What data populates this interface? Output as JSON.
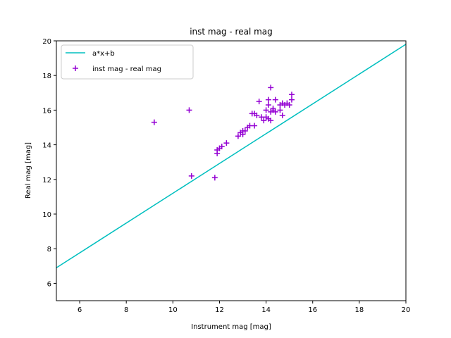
{
  "chart_data": {
    "type": "scatter",
    "title": "inst mag - real mag",
    "xlabel": "Instrument mag [mag]",
    "ylabel": "Real mag [mag]",
    "xlim": [
      5,
      20
    ],
    "ylim": [
      5,
      20
    ],
    "xticks": [
      6,
      8,
      10,
      12,
      14,
      16,
      18,
      20
    ],
    "yticks": [
      6,
      8,
      10,
      12,
      14,
      16,
      18,
      20
    ],
    "grid": false,
    "legend_position": "upper-left",
    "line": {
      "name": "a*x+b",
      "color": "#00bfbf",
      "x": [
        5,
        20
      ],
      "y": [
        6.9,
        19.8
      ]
    },
    "series": [
      {
        "name": "inst mag - real mag",
        "color": "#9400d3",
        "marker": "plus",
        "points": [
          [
            9.2,
            15.3
          ],
          [
            10.7,
            16.0
          ],
          [
            10.8,
            12.2
          ],
          [
            11.8,
            12.1
          ],
          [
            11.9,
            13.5
          ],
          [
            11.9,
            13.7
          ],
          [
            12.0,
            13.8
          ],
          [
            12.1,
            13.9
          ],
          [
            12.3,
            14.1
          ],
          [
            12.8,
            14.5
          ],
          [
            12.9,
            14.7
          ],
          [
            13.0,
            14.8
          ],
          [
            13.0,
            14.6
          ],
          [
            13.1,
            14.8
          ],
          [
            13.2,
            15.0
          ],
          [
            13.3,
            15.1
          ],
          [
            13.4,
            15.8
          ],
          [
            13.5,
            15.1
          ],
          [
            13.5,
            15.8
          ],
          [
            13.6,
            15.7
          ],
          [
            13.7,
            16.5
          ],
          [
            13.8,
            15.6
          ],
          [
            13.9,
            15.4
          ],
          [
            14.0,
            15.6
          ],
          [
            14.0,
            16.0
          ],
          [
            14.1,
            16.3
          ],
          [
            14.1,
            16.6
          ],
          [
            14.1,
            15.5
          ],
          [
            14.2,
            15.4
          ],
          [
            14.2,
            15.9
          ],
          [
            14.3,
            16.0
          ],
          [
            14.2,
            17.3
          ],
          [
            14.3,
            16.1
          ],
          [
            14.4,
            15.9
          ],
          [
            14.4,
            16.6
          ],
          [
            14.6,
            16.0
          ],
          [
            14.6,
            16.3
          ],
          [
            14.7,
            16.4
          ],
          [
            14.7,
            15.7
          ],
          [
            14.8,
            16.3
          ],
          [
            14.9,
            16.4
          ],
          [
            15.0,
            16.3
          ],
          [
            15.1,
            16.6
          ],
          [
            15.1,
            16.9
          ]
        ]
      }
    ]
  }
}
